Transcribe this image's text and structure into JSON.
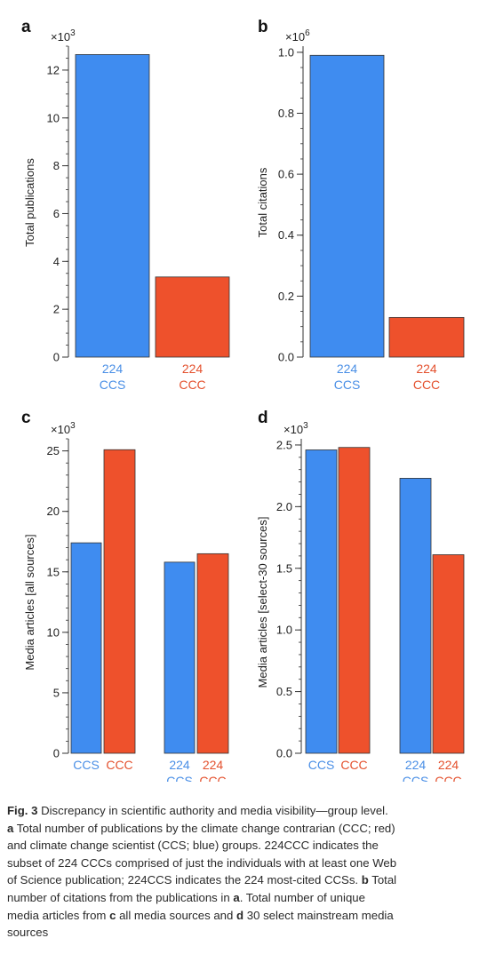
{
  "colors": {
    "ccs": "#3f8cf0",
    "ccc": "#ee512c",
    "ccs_text": "#4a8fe6",
    "ccc_text": "#e4512e",
    "axis": "#333333"
  },
  "chart_data": [
    {
      "panel": "a",
      "type": "bar",
      "multiplier": "×10",
      "multiplier_exp": "3",
      "ylabel": "Total publications",
      "ylim": [
        0,
        13.0
      ],
      "yticks": [
        0,
        2,
        4,
        6,
        8,
        10,
        12
      ],
      "ytick_labels": [
        "0",
        "2",
        "4",
        "6",
        "8",
        "10",
        "12"
      ],
      "minor_step": 0.5,
      "categories": [
        {
          "line1": "224",
          "line2": "CCS",
          "group": "ccs"
        },
        {
          "line1": "224",
          "line2": "CCC",
          "group": "ccc"
        }
      ],
      "values": [
        12.65,
        3.35
      ]
    },
    {
      "panel": "b",
      "type": "bar",
      "multiplier": "×10",
      "multiplier_exp": "6",
      "ylabel": "Total citations",
      "ylim": [
        0,
        1.02
      ],
      "yticks": [
        0,
        0.2,
        0.4,
        0.6,
        0.8,
        1.0
      ],
      "ytick_labels": [
        "0.0",
        "0.2",
        "0.4",
        "0.6",
        "0.8",
        "1.0"
      ],
      "minor_step": 0.05,
      "categories": [
        {
          "line1": "224",
          "line2": "CCS",
          "group": "ccs"
        },
        {
          "line1": "224",
          "line2": "CCC",
          "group": "ccc"
        }
      ],
      "values": [
        0.99,
        0.13
      ]
    },
    {
      "panel": "c",
      "type": "bar",
      "multiplier": "×10",
      "multiplier_exp": "3",
      "ylabel": "Media articles [all sources]",
      "ylim": [
        0,
        26.0
      ],
      "yticks": [
        0,
        5,
        10,
        15,
        20,
        25
      ],
      "ytick_labels": [
        "0",
        "5",
        "10",
        "15",
        "20",
        "25"
      ],
      "minor_step": 1,
      "categories": [
        {
          "line1": "CCS",
          "line2": "",
          "group": "ccs"
        },
        {
          "line1": "CCC",
          "line2": "",
          "group": "ccc"
        },
        {
          "line1": "224",
          "line2": "CCS",
          "group": "ccs"
        },
        {
          "line1": "224",
          "line2": "CCC",
          "group": "ccc"
        }
      ],
      "values": [
        17.4,
        25.1,
        15.8,
        16.5
      ]
    },
    {
      "panel": "d",
      "type": "bar",
      "multiplier": "×10",
      "multiplier_exp": "3",
      "ylabel": "Media articles [select-30 sources]",
      "ylim": [
        0,
        2.55
      ],
      "yticks": [
        0,
        0.5,
        1.0,
        1.5,
        2.0,
        2.5
      ],
      "ytick_labels": [
        "0.0",
        "0.5",
        "1.0",
        "1.5",
        "2.0",
        "2.5"
      ],
      "minor_step": 0.1,
      "categories": [
        {
          "line1": "CCS",
          "line2": "",
          "group": "ccs"
        },
        {
          "line1": "CCC",
          "line2": "",
          "group": "ccc"
        },
        {
          "line1": "224",
          "line2": "CCS",
          "group": "ccs"
        },
        {
          "line1": "224",
          "line2": "CCC",
          "group": "ccc"
        }
      ],
      "values": [
        2.46,
        2.48,
        2.23,
        1.61
      ]
    }
  ],
  "caption": {
    "fig_label": "Fig. 3",
    "lines": [
      {
        "parts": [
          {
            "b": true,
            "t": "Fig. 3"
          },
          {
            "t": " Discrepancy in scientific authority and media visibility—group level."
          }
        ]
      },
      {
        "parts": [
          {
            "b": true,
            "t": "a"
          },
          {
            "t": " Total number of publications by the climate change contrarian (CCC; red)"
          }
        ]
      },
      {
        "parts": [
          {
            "t": "and climate change scientist (CCS; blue) groups. 224CCC indicates the"
          }
        ]
      },
      {
        "parts": [
          {
            "t": "subset of 224 CCCs comprised of just the individuals with at least one Web"
          }
        ]
      },
      {
        "parts": [
          {
            "t": "of Science publication; 224CCS indicates the 224 most-cited CCSs. "
          },
          {
            "b": true,
            "t": "b"
          },
          {
            "t": " Total"
          }
        ]
      },
      {
        "parts": [
          {
            "t": "number of citations from the publications in "
          },
          {
            "b": true,
            "t": "a"
          },
          {
            "t": ". Total number of unique"
          }
        ]
      },
      {
        "parts": [
          {
            "t": "media articles from "
          },
          {
            "b": true,
            "t": "c"
          },
          {
            "t": " all media sources and "
          },
          {
            "b": true,
            "t": "d"
          },
          {
            "t": " 30 select mainstream media"
          }
        ]
      },
      {
        "parts": [
          {
            "t": "sources"
          }
        ]
      }
    ]
  }
}
